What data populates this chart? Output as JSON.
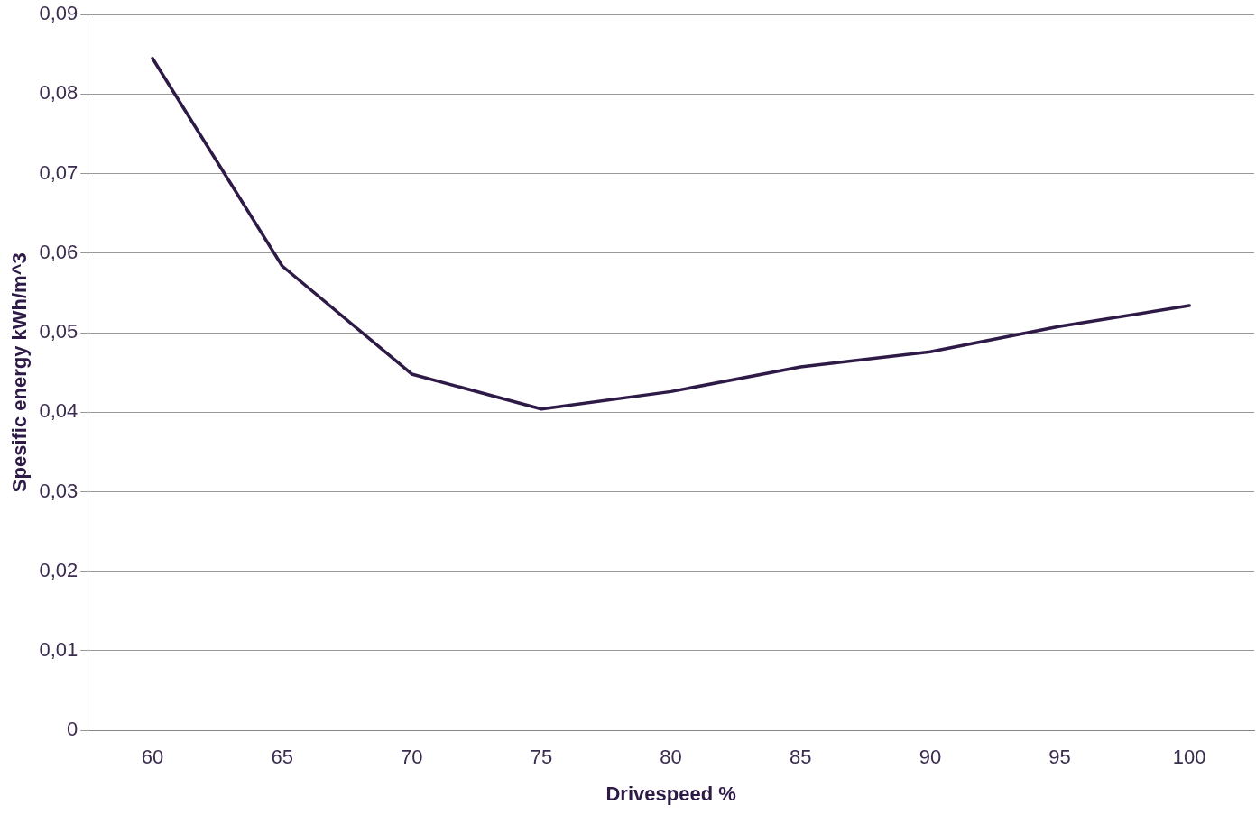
{
  "chart_data": {
    "type": "line",
    "xlabel": "Drivespeed %",
    "ylabel": "Spesific energy kWh/m^3",
    "categories": [
      "60",
      "65",
      "70",
      "75",
      "80",
      "85",
      "90",
      "95",
      "100"
    ],
    "series": [
      {
        "color": "#2e1a47",
        "values": [
          0.0845,
          0.0584,
          0.0448,
          0.0404,
          0.0426,
          0.0457,
          0.0476,
          0.0508,
          0.0534
        ]
      }
    ],
    "ylim": [
      0,
      0.09
    ],
    "yticks": [
      {
        "value": 0,
        "label": "0"
      },
      {
        "value": 0.01,
        "label": "0,01"
      },
      {
        "value": 0.02,
        "label": "0,02"
      },
      {
        "value": 0.03,
        "label": "0,03"
      },
      {
        "value": 0.04,
        "label": "0,04"
      },
      {
        "value": 0.05,
        "label": "0,05"
      },
      {
        "value": 0.06,
        "label": "0,06"
      },
      {
        "value": 0.07,
        "label": "0,07"
      },
      {
        "value": 0.08,
        "label": "0,08"
      },
      {
        "value": 0.09,
        "label": "0,09"
      }
    ],
    "grid": "y",
    "marker": "none",
    "line_style": "solid"
  }
}
